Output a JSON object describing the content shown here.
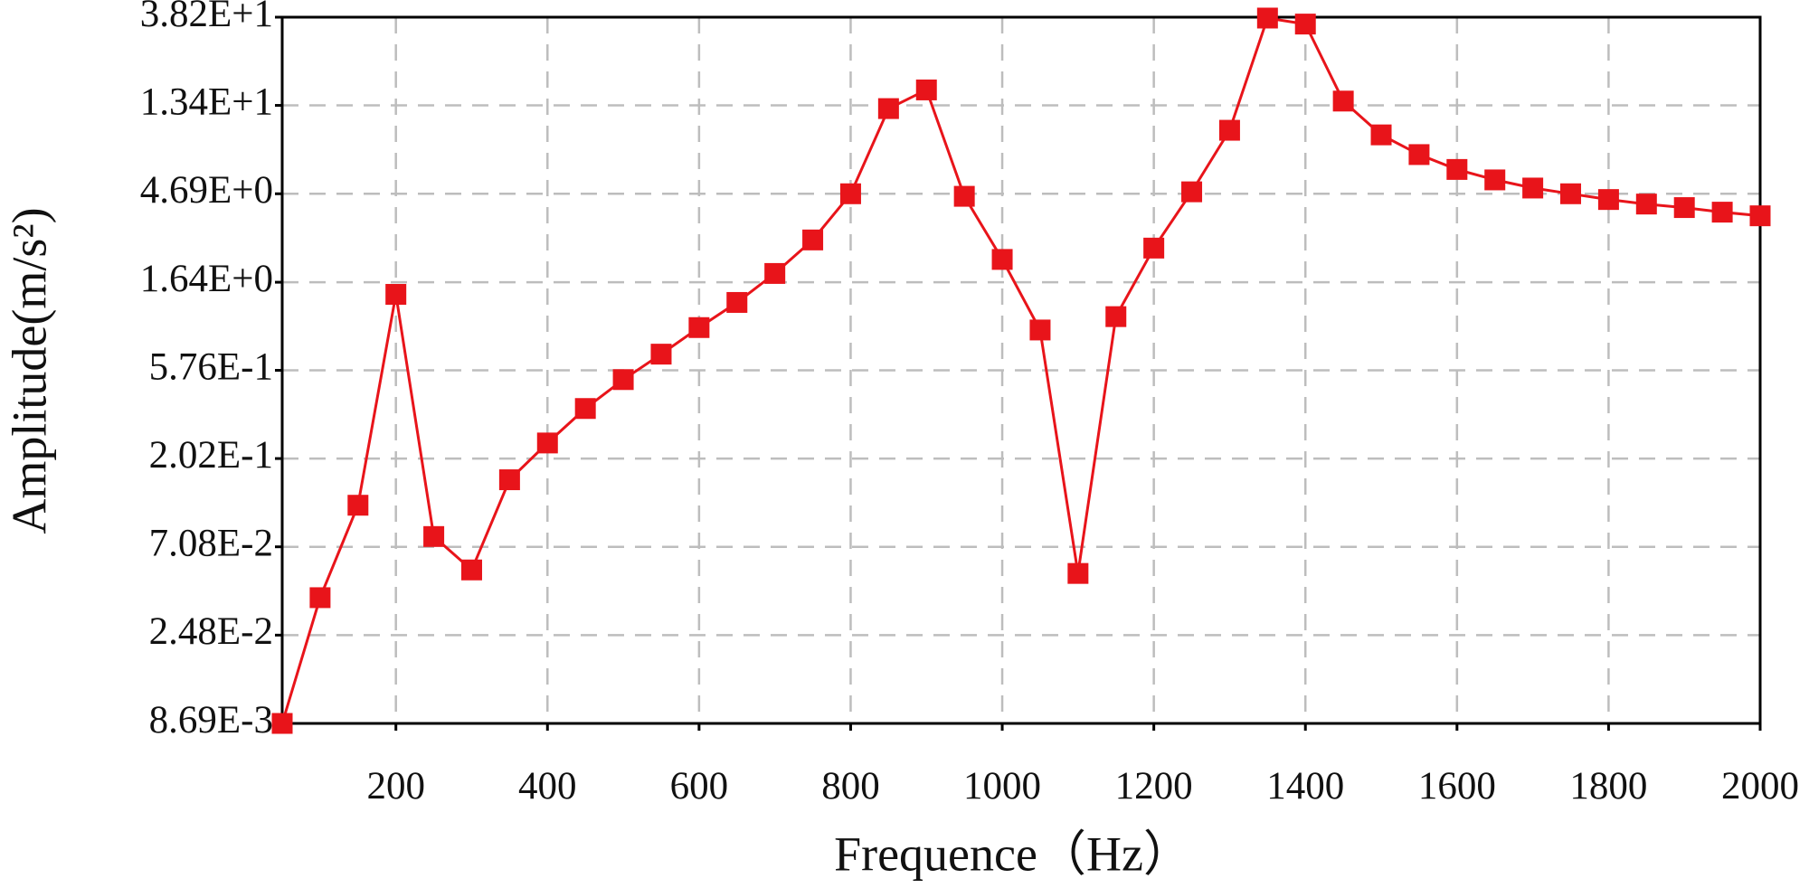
{
  "chart_data": {
    "type": "line",
    "xlabel": "Frequence（Hz）",
    "ylabel": "Amplitude(m/s²)",
    "x": [
      50,
      100,
      150,
      200,
      250,
      300,
      350,
      400,
      450,
      500,
      550,
      600,
      650,
      700,
      750,
      800,
      850,
      900,
      950,
      1000,
      1050,
      1100,
      1150,
      1200,
      1250,
      1300,
      1350,
      1400,
      1450,
      1500,
      1550,
      1600,
      1650,
      1700,
      1750,
      1800,
      1850,
      1900,
      1950,
      2000
    ],
    "series": [
      {
        "color": "#e8141a",
        "values": [
          0.00869,
          0.0387,
          0.116,
          1.42,
          0.08,
          0.0538,
          0.157,
          0.243,
          0.366,
          0.516,
          0.698,
          0.957,
          1.29,
          1.82,
          2.71,
          4.69,
          12.9,
          16.1,
          4.55,
          2.15,
          0.93,
          0.0516,
          1.09,
          2.46,
          4.8,
          9.97,
          37.8,
          35.2,
          14.1,
          9.44,
          7.47,
          6.26,
          5.53,
          5.02,
          4.69,
          4.38,
          4.15,
          3.98,
          3.77,
          3.61
        ]
      }
    ],
    "xlim": [
      50,
      2000
    ],
    "xticks": [
      200,
      400,
      600,
      800,
      1000,
      1200,
      1400,
      1600,
      1800,
      2000
    ],
    "ylim": [
      0.00869,
      38.2
    ],
    "yscale": "log",
    "yticks": [
      {
        "value": 0.00869,
        "label": "8.69E-3"
      },
      {
        "value": 0.0248,
        "label": "2.48E-2"
      },
      {
        "value": 0.0708,
        "label": "7.08E-2"
      },
      {
        "value": 0.202,
        "label": "2.02E-1"
      },
      {
        "value": 0.576,
        "label": "5.76E-1"
      },
      {
        "value": 1.64,
        "label": "1.64E+0"
      },
      {
        "value": 4.69,
        "label": "4.69E+0"
      },
      {
        "value": 13.4,
        "label": "1.34E+1"
      },
      {
        "value": 38.2,
        "label": "3.82E+1"
      }
    ],
    "grid": true
  }
}
